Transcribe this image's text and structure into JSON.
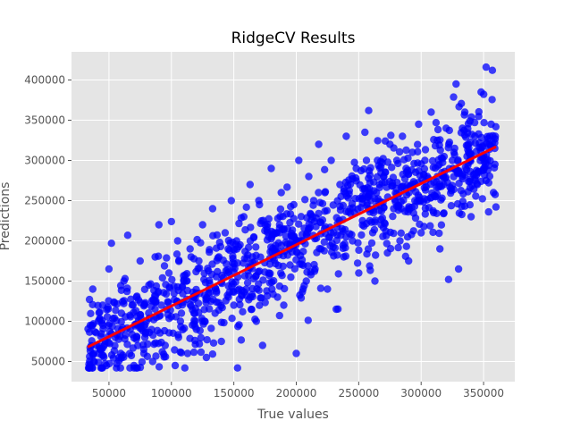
{
  "colors": {
    "plot_background": "#e5e5e5",
    "grid": "#ffffff",
    "points": "#0000ff",
    "fit_line": "#ff0000",
    "text": "#555555"
  },
  "chart_data": {
    "type": "scatter",
    "title": "RidgeCV Results",
    "xlabel": "True values",
    "ylabel": "Predictions",
    "xlim": [
      20000,
      375000
    ],
    "ylim": [
      25000,
      435000
    ],
    "xticks": [
      50000,
      100000,
      150000,
      200000,
      250000,
      300000,
      350000
    ],
    "yticks": [
      50000,
      100000,
      150000,
      200000,
      250000,
      300000,
      350000,
      400000
    ],
    "xtick_labels": [
      "50000",
      "100000",
      "150000",
      "200000",
      "250000",
      "300000",
      "350000"
    ],
    "ytick_labels": [
      "50000",
      "100000",
      "150000",
      "200000",
      "250000",
      "300000",
      "350000",
      "400000"
    ],
    "grid": true,
    "fit_line": {
      "x": [
        33000,
        360000
      ],
      "y": [
        68000,
        317000
      ]
    },
    "approx_point_count": 1200,
    "series": [
      {
        "points": [
          [
            35000,
            95000
          ],
          [
            37000,
            140000
          ],
          [
            38000,
            50000
          ],
          [
            40000,
            70000
          ],
          [
            42000,
            60000
          ],
          [
            45000,
            120000
          ],
          [
            48000,
            45000
          ],
          [
            50000,
            165000
          ],
          [
            52000,
            197000
          ],
          [
            55000,
            80000
          ],
          [
            58000,
            55000
          ],
          [
            60000,
            110000
          ],
          [
            62000,
            150000
          ],
          [
            65000,
            207000
          ],
          [
            67000,
            90000
          ],
          [
            70000,
            45000
          ],
          [
            72000,
            130000
          ],
          [
            75000,
            175000
          ],
          [
            78000,
            60000
          ],
          [
            80000,
            100000
          ],
          [
            82000,
            145000
          ],
          [
            85000,
            50000
          ],
          [
            87000,
            180000
          ],
          [
            90000,
            220000
          ],
          [
            92000,
            120000
          ],
          [
            95000,
            70000
          ],
          [
            98000,
            160000
          ],
          [
            100000,
            224000
          ],
          [
            103000,
            45000
          ],
          [
            105000,
            200000
          ],
          [
            108000,
            110000
          ],
          [
            110000,
            150000
          ],
          [
            113000,
            60000
          ],
          [
            115000,
            190000
          ],
          [
            118000,
            130000
          ],
          [
            120000,
            90000
          ],
          [
            122000,
            175000
          ],
          [
            125000,
            220000
          ],
          [
            128000,
            55000
          ],
          [
            130000,
            140000
          ],
          [
            133000,
            240000
          ],
          [
            135000,
            110000
          ],
          [
            138000,
            180000
          ],
          [
            140000,
            75000
          ],
          [
            143000,
            210000
          ],
          [
            145000,
            160000
          ],
          [
            148000,
            250000
          ],
          [
            150000,
            120000
          ],
          [
            153000,
            42000
          ],
          [
            155000,
            195000
          ],
          [
            158000,
            230000
          ],
          [
            160000,
            140000
          ],
          [
            163000,
            270000
          ],
          [
            165000,
            180000
          ],
          [
            168000,
            100000
          ],
          [
            170000,
            250000
          ],
          [
            173000,
            70000
          ],
          [
            175000,
            220000
          ],
          [
            178000,
            160000
          ],
          [
            180000,
            290000
          ],
          [
            183000,
            190000
          ],
          [
            185000,
            130000
          ],
          [
            188000,
            260000
          ],
          [
            190000,
            120000
          ],
          [
            193000,
            215000
          ],
          [
            195000,
            170000
          ],
          [
            198000,
            245000
          ],
          [
            200000,
            60000
          ],
          [
            202000,
            300000
          ],
          [
            205000,
            200000
          ],
          [
            208000,
            150000
          ],
          [
            210000,
            280000
          ],
          [
            213000,
            230000
          ],
          [
            215000,
            165000
          ],
          [
            218000,
            320000
          ],
          [
            220000,
            190000
          ],
          [
            223000,
            260000
          ],
          [
            225000,
            140000
          ],
          [
            228000,
            300000
          ],
          [
            230000,
            210000
          ],
          [
            232000,
            115000
          ],
          [
            235000,
            270000
          ],
          [
            238000,
            180000
          ],
          [
            240000,
            330000
          ],
          [
            243000,
            240000
          ],
          [
            245000,
            200000
          ],
          [
            248000,
            290000
          ],
          [
            250000,
            160000
          ],
          [
            253000,
            225000
          ],
          [
            255000,
            335000
          ],
          [
            258000,
            362000
          ],
          [
            260000,
            250000
          ],
          [
            263000,
            150000
          ],
          [
            265000,
            300000
          ],
          [
            268000,
            220000
          ],
          [
            270000,
            280000
          ],
          [
            273000,
            185000
          ],
          [
            275000,
            320000
          ],
          [
            278000,
            240000
          ],
          [
            280000,
            265000
          ],
          [
            283000,
            200000
          ],
          [
            285000,
            330000
          ],
          [
            288000,
            290000
          ],
          [
            290000,
            175000
          ],
          [
            293000,
            310000
          ],
          [
            295000,
            250000
          ],
          [
            298000,
            345000
          ],
          [
            300000,
            210000
          ],
          [
            303000,
            300000
          ],
          [
            305000,
            280000
          ],
          [
            308000,
            360000
          ],
          [
            310000,
            235000
          ],
          [
            313000,
            325000
          ],
          [
            315000,
            190000
          ],
          [
            318000,
            270000
          ],
          [
            320000,
            340000
          ],
          [
            322000,
            152000
          ],
          [
            325000,
            300000
          ],
          [
            328000,
            395000
          ],
          [
            330000,
            165000
          ],
          [
            333000,
            280000
          ],
          [
            335000,
            360000
          ],
          [
            338000,
            310000
          ],
          [
            340000,
            230000
          ],
          [
            343000,
            330000
          ],
          [
            345000,
            270000
          ],
          [
            348000,
            385000
          ],
          [
            350000,
            290000
          ],
          [
            352000,
            416000
          ],
          [
            354000,
            236000
          ],
          [
            355000,
            330000
          ],
          [
            357000,
            412000
          ],
          [
            358000,
            260000
          ],
          [
            359000,
            315000
          ],
          [
            356000,
            345000
          ]
        ]
      }
    ]
  }
}
